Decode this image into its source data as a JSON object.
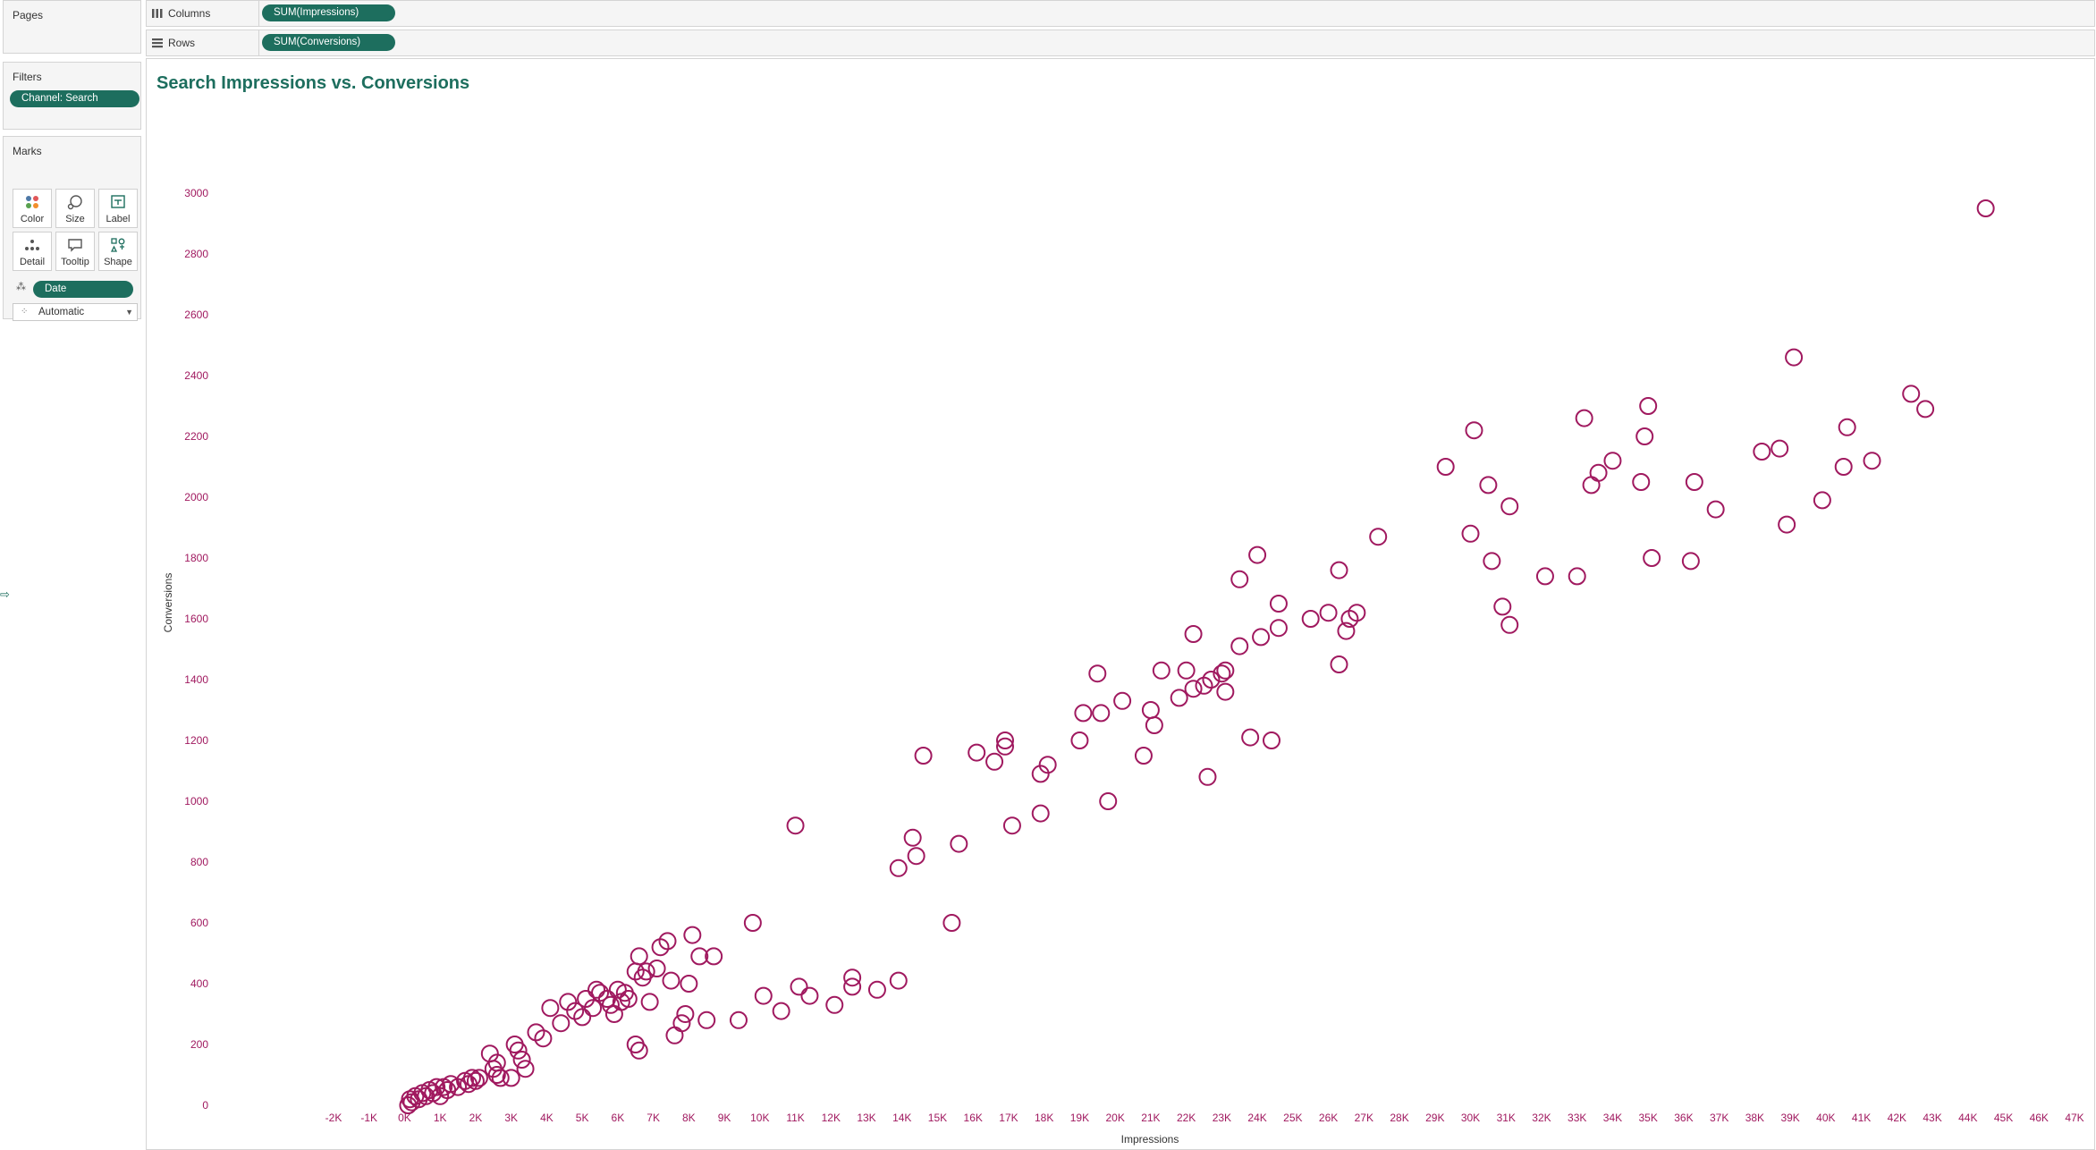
{
  "panels": {
    "pages": {
      "title": "Pages"
    },
    "filters": {
      "title": "Filters",
      "pills": [
        "Channel: Search"
      ]
    },
    "marks": {
      "title": "Marks",
      "mark_type": "Automatic",
      "buttons": [
        "Color",
        "Size",
        "Label",
        "Detail",
        "Tooltip",
        "Shape"
      ],
      "detail_pill": "Date"
    }
  },
  "shelves": {
    "columns": {
      "label": "Columns",
      "pill": "SUM(Impressions)"
    },
    "rows": {
      "label": "Rows",
      "pill": "SUM(Conversions)"
    }
  },
  "colors": {
    "accent": "#1d6e5e",
    "mark": "#a0195f",
    "axis_text": "#a0195f"
  },
  "chart_data": {
    "type": "scatter",
    "title": "Search Impressions vs. Conversions",
    "xlabel": "Impressions",
    "ylabel": "Conversions",
    "xlim": [
      -2000,
      47000
    ],
    "ylim": [
      0,
      3000
    ],
    "x_ticks": [
      {
        "v": -2000,
        "label": "-2K"
      },
      {
        "v": -1000,
        "label": "-1K"
      },
      {
        "v": 0,
        "label": "0K"
      },
      {
        "v": 1000,
        "label": "1K"
      },
      {
        "v": 2000,
        "label": "2K"
      },
      {
        "v": 3000,
        "label": "3K"
      },
      {
        "v": 4000,
        "label": "4K"
      },
      {
        "v": 5000,
        "label": "5K"
      },
      {
        "v": 6000,
        "label": "6K"
      },
      {
        "v": 7000,
        "label": "7K"
      },
      {
        "v": 8000,
        "label": "8K"
      },
      {
        "v": 9000,
        "label": "9K"
      },
      {
        "v": 10000,
        "label": "10K"
      },
      {
        "v": 11000,
        "label": "11K"
      },
      {
        "v": 12000,
        "label": "12K"
      },
      {
        "v": 13000,
        "label": "13K"
      },
      {
        "v": 14000,
        "label": "14K"
      },
      {
        "v": 15000,
        "label": "15K"
      },
      {
        "v": 16000,
        "label": "16K"
      },
      {
        "v": 17000,
        "label": "17K"
      },
      {
        "v": 18000,
        "label": "18K"
      },
      {
        "v": 19000,
        "label": "19K"
      },
      {
        "v": 20000,
        "label": "20K"
      },
      {
        "v": 21000,
        "label": "21K"
      },
      {
        "v": 22000,
        "label": "22K"
      },
      {
        "v": 23000,
        "label": "23K"
      },
      {
        "v": 24000,
        "label": "24K"
      },
      {
        "v": 25000,
        "label": "25K"
      },
      {
        "v": 26000,
        "label": "26K"
      },
      {
        "v": 27000,
        "label": "27K"
      },
      {
        "v": 28000,
        "label": "28K"
      },
      {
        "v": 29000,
        "label": "29K"
      },
      {
        "v": 30000,
        "label": "30K"
      },
      {
        "v": 31000,
        "label": "31K"
      },
      {
        "v": 32000,
        "label": "32K"
      },
      {
        "v": 33000,
        "label": "33K"
      },
      {
        "v": 34000,
        "label": "34K"
      },
      {
        "v": 35000,
        "label": "35K"
      },
      {
        "v": 36000,
        "label": "36K"
      },
      {
        "v": 37000,
        "label": "37K"
      },
      {
        "v": 38000,
        "label": "38K"
      },
      {
        "v": 39000,
        "label": "39K"
      },
      {
        "v": 40000,
        "label": "40K"
      },
      {
        "v": 41000,
        "label": "41K"
      },
      {
        "v": 42000,
        "label": "42K"
      },
      {
        "v": 43000,
        "label": "43K"
      },
      {
        "v": 44000,
        "label": "44K"
      },
      {
        "v": 45000,
        "label": "45K"
      },
      {
        "v": 46000,
        "label": "46K"
      },
      {
        "v": 47000,
        "label": "47K"
      }
    ],
    "y_ticks": [
      {
        "v": 0,
        "label": "0"
      },
      {
        "v": 200,
        "label": "200"
      },
      {
        "v": 400,
        "label": "400"
      },
      {
        "v": 600,
        "label": "600"
      },
      {
        "v": 800,
        "label": "800"
      },
      {
        "v": 1000,
        "label": "1000"
      },
      {
        "v": 1200,
        "label": "1200"
      },
      {
        "v": 1400,
        "label": "1400"
      },
      {
        "v": 1600,
        "label": "1600"
      },
      {
        "v": 1800,
        "label": "1800"
      },
      {
        "v": 2000,
        "label": "2000"
      },
      {
        "v": 2200,
        "label": "2200"
      },
      {
        "v": 2400,
        "label": "2400"
      },
      {
        "v": 2600,
        "label": "2600"
      },
      {
        "v": 2800,
        "label": "2800"
      },
      {
        "v": 3000,
        "label": "3000"
      }
    ],
    "grid": false,
    "marker": "open-circle",
    "points": [
      [
        100,
        0
      ],
      [
        200,
        10
      ],
      [
        150,
        20
      ],
      [
        300,
        30
      ],
      [
        400,
        20
      ],
      [
        500,
        40
      ],
      [
        600,
        30
      ],
      [
        700,
        50
      ],
      [
        800,
        40
      ],
      [
        900,
        60
      ],
      [
        1000,
        30
      ],
      [
        1100,
        60
      ],
      [
        1200,
        50
      ],
      [
        1300,
        70
      ],
      [
        1500,
        60
      ],
      [
        1700,
        80
      ],
      [
        1800,
        70
      ],
      [
        1900,
        90
      ],
      [
        2000,
        80
      ],
      [
        2100,
        90
      ],
      [
        2400,
        170
      ],
      [
        2500,
        120
      ],
      [
        2600,
        100
      ],
      [
        2700,
        90
      ],
      [
        2600,
        140
      ],
      [
        3000,
        90
      ],
      [
        3100,
        200
      ],
      [
        3200,
        180
      ],
      [
        3300,
        150
      ],
      [
        3400,
        120
      ],
      [
        3700,
        240
      ],
      [
        3900,
        220
      ],
      [
        4100,
        320
      ],
      [
        4400,
        270
      ],
      [
        4600,
        340
      ],
      [
        4800,
        310
      ],
      [
        5000,
        290
      ],
      [
        5100,
        350
      ],
      [
        5300,
        320
      ],
      [
        5400,
        380
      ],
      [
        5500,
        370
      ],
      [
        5700,
        350
      ],
      [
        5800,
        330
      ],
      [
        5900,
        300
      ],
      [
        6000,
        380
      ],
      [
        6100,
        340
      ],
      [
        6200,
        370
      ],
      [
        6300,
        350
      ],
      [
        6500,
        440
      ],
      [
        6600,
        490
      ],
      [
        6700,
        420
      ],
      [
        6800,
        440
      ],
      [
        6500,
        200
      ],
      [
        6600,
        180
      ],
      [
        6900,
        340
      ],
      [
        7100,
        450
      ],
      [
        7200,
        520
      ],
      [
        7400,
        540
      ],
      [
        7500,
        410
      ],
      [
        7600,
        230
      ],
      [
        7800,
        270
      ],
      [
        7900,
        300
      ],
      [
        8000,
        400
      ],
      [
        8100,
        560
      ],
      [
        8300,
        490
      ],
      [
        8500,
        280
      ],
      [
        8700,
        490
      ],
      [
        9400,
        280
      ],
      [
        9800,
        600
      ],
      [
        10100,
        360
      ],
      [
        10600,
        310
      ],
      [
        11000,
        920
      ],
      [
        11100,
        390
      ],
      [
        11400,
        360
      ],
      [
        12100,
        330
      ],
      [
        12600,
        420
      ],
      [
        12600,
        390
      ],
      [
        13300,
        380
      ],
      [
        13900,
        780
      ],
      [
        13900,
        410
      ],
      [
        14300,
        880
      ],
      [
        14400,
        820
      ],
      [
        14600,
        1150
      ],
      [
        15400,
        600
      ],
      [
        15600,
        860
      ],
      [
        16100,
        1160
      ],
      [
        16600,
        1130
      ],
      [
        16900,
        1200
      ],
      [
        16900,
        1180
      ],
      [
        17100,
        920
      ],
      [
        17900,
        1090
      ],
      [
        17900,
        960
      ],
      [
        18100,
        1120
      ],
      [
        19000,
        1200
      ],
      [
        19100,
        1290
      ],
      [
        19500,
        1420
      ],
      [
        19600,
        1290
      ],
      [
        19800,
        1000
      ],
      [
        20200,
        1330
      ],
      [
        20800,
        1150
      ],
      [
        21000,
        1300
      ],
      [
        21100,
        1250
      ],
      [
        21300,
        1430
      ],
      [
        21800,
        1340
      ],
      [
        22000,
        1430
      ],
      [
        22200,
        1550
      ],
      [
        22200,
        1370
      ],
      [
        22500,
        1380
      ],
      [
        22600,
        1080
      ],
      [
        22700,
        1400
      ],
      [
        23000,
        1420
      ],
      [
        23100,
        1360
      ],
      [
        23100,
        1430
      ],
      [
        23500,
        1510
      ],
      [
        23500,
        1730
      ],
      [
        23800,
        1210
      ],
      [
        24000,
        1810
      ],
      [
        24100,
        1540
      ],
      [
        24400,
        1200
      ],
      [
        24600,
        1570
      ],
      [
        24600,
        1650
      ],
      [
        25500,
        1600
      ],
      [
        26000,
        1620
      ],
      [
        26300,
        1450
      ],
      [
        26300,
        1760
      ],
      [
        26500,
        1560
      ],
      [
        26600,
        1600
      ],
      [
        26800,
        1620
      ],
      [
        27400,
        1870
      ],
      [
        29300,
        2100
      ],
      [
        30000,
        1880
      ],
      [
        30100,
        2220
      ],
      [
        30500,
        2040
      ],
      [
        30600,
        1790
      ],
      [
        30900,
        1640
      ],
      [
        31100,
        1580
      ],
      [
        31100,
        1970
      ],
      [
        32100,
        1740
      ],
      [
        33000,
        1740
      ],
      [
        33200,
        2260
      ],
      [
        33400,
        2040
      ],
      [
        33600,
        2080
      ],
      [
        34000,
        2120
      ],
      [
        34800,
        2050
      ],
      [
        34900,
        2200
      ],
      [
        35000,
        2300
      ],
      [
        35100,
        1800
      ],
      [
        36200,
        1790
      ],
      [
        36300,
        2050
      ],
      [
        36900,
        1960
      ],
      [
        38200,
        2150
      ],
      [
        38700,
        2160
      ],
      [
        38900,
        1910
      ],
      [
        39100,
        2460
      ],
      [
        39900,
        1990
      ],
      [
        40500,
        2100
      ],
      [
        40600,
        2230
      ],
      [
        41300,
        2120
      ],
      [
        42400,
        2340
      ],
      [
        42800,
        2290
      ],
      [
        44500,
        2950
      ]
    ]
  }
}
